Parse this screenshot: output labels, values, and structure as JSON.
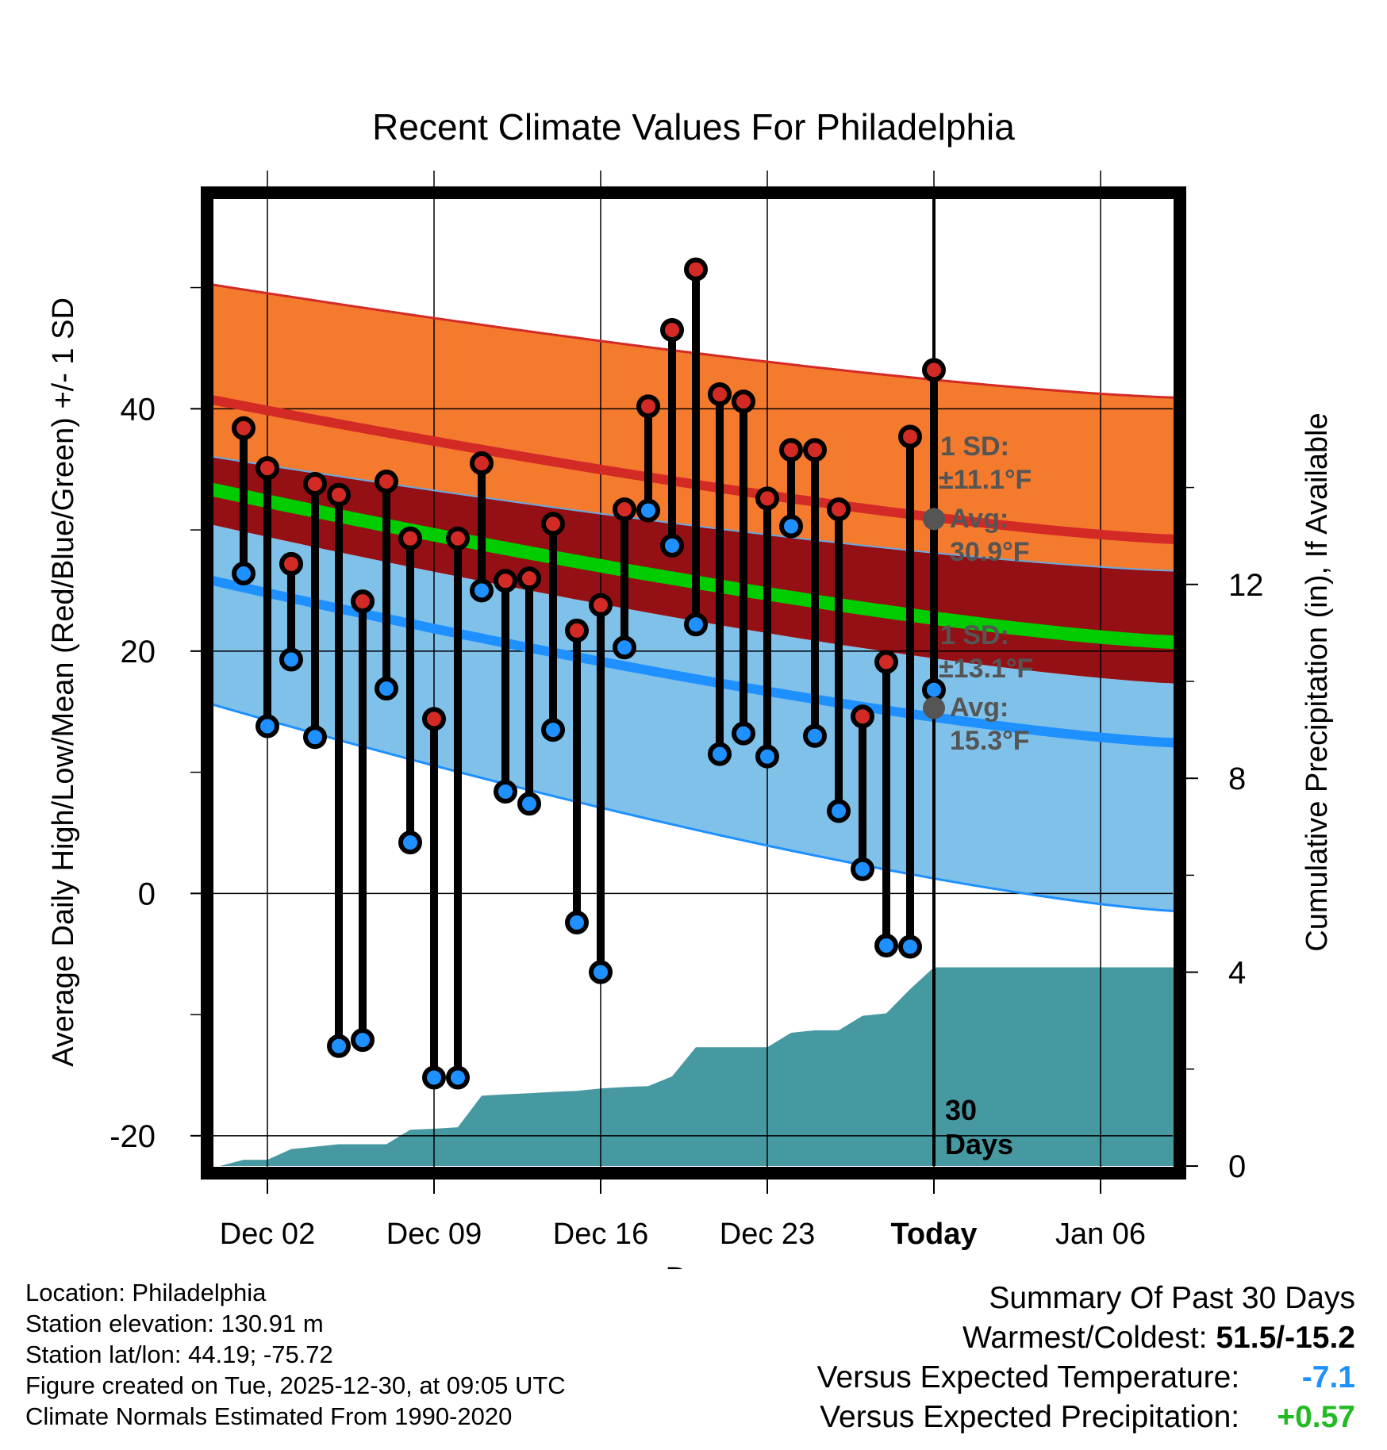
{
  "chart_data": {
    "type": "climate-range",
    "title": "Recent Climate Values For Philadelphia",
    "xlabel": "Day",
    "ylabel": "Average Daily High/Low/Mean (Red/Blue/Green) +/- 1 SD",
    "y2label": "Cumulative Precipitation (in), If Available",
    "x_ticks": [
      "Dec 02",
      "Dec 09",
      "Dec 16",
      "Dec 23",
      "Today",
      "Jan 06"
    ],
    "y_ticks": [
      "40",
      "20",
      "0",
      "-20"
    ],
    "y2_ticks": [
      "12",
      "8",
      "4",
      "0"
    ],
    "ylim": [
      -22.5,
      57.5
    ],
    "y2lim": [
      0,
      20
    ],
    "xlim": [
      -0.5,
      40.5
    ],
    "today_index": 30,
    "days": [
      1,
      2,
      3,
      4,
      5,
      6,
      7,
      8,
      9,
      10,
      11,
      12,
      13,
      14,
      15,
      16,
      17,
      18,
      19,
      20,
      21,
      22,
      23,
      24,
      25,
      26,
      27,
      28,
      29,
      30
    ],
    "highs": [
      38.4,
      35.1,
      27.2,
      33.8,
      32.9,
      24.1,
      34.0,
      29.3,
      14.4,
      29.3,
      35.5,
      25.8,
      26.0,
      30.5,
      21.7,
      23.8,
      31.7,
      40.2,
      46.5,
      51.5,
      41.2,
      40.6,
      32.6,
      36.6,
      36.6,
      31.7,
      14.6,
      19.1,
      37.7,
      43.2
    ],
    "lows": [
      26.4,
      13.8,
      19.3,
      12.9,
      -12.6,
      -12.1,
      16.9,
      4.2,
      -15.2,
      -15.2,
      25.0,
      8.4,
      7.4,
      13.5,
      -2.4,
      -6.5,
      20.3,
      31.6,
      28.7,
      22.2,
      11.5,
      13.2,
      11.3,
      30.3,
      13.0,
      6.8,
      2.0,
      -4.3,
      -4.4,
      16.8
    ],
    "normals_high_mean": [
      40.8,
      29.2
    ],
    "normals_high_upper": [
      50.3,
      40.9
    ],
    "normals_high_lower": [
      36.1,
      26.6
    ],
    "normals_low_mean": [
      25.9,
      12.4
    ],
    "normals_low_upper": [
      30.5,
      17.3
    ],
    "normals_low_lower": [
      15.7,
      -1.5
    ],
    "normals_mean": [
      33.4,
      20.7
    ],
    "precip_x": [
      0,
      1,
      2,
      3,
      4,
      5,
      6,
      7,
      8,
      9,
      10,
      11,
      12,
      13,
      14,
      15,
      16,
      17,
      18,
      19,
      20,
      21,
      22,
      23,
      24,
      25,
      26,
      27,
      28,
      29,
      30,
      40
    ],
    "precip_cum": [
      0.0,
      0.13,
      0.13,
      0.35,
      0.4,
      0.45,
      0.45,
      0.45,
      0.75,
      0.77,
      0.8,
      1.45,
      1.48,
      1.5,
      1.53,
      1.55,
      1.6,
      1.63,
      1.65,
      1.85,
      2.45,
      2.45,
      2.45,
      2.45,
      2.75,
      2.8,
      2.8,
      3.1,
      3.15,
      3.65,
      4.1,
      4.1
    ],
    "annotations": {
      "high_sd_label": "1 SD:",
      "high_sd_value": "±11.1°F",
      "high_avg_label": "Avg:",
      "high_avg_value": "30.9°F",
      "low_sd_label": "1 SD:",
      "low_sd_value": "±13.1°F",
      "low_avg_label": "Avg:",
      "low_avg_value": "15.3°F",
      "high_avg_point": 30.9,
      "low_avg_point": 15.3,
      "days_number": "30",
      "days_label": "Days"
    },
    "colors": {
      "high_band": "#f47a2e",
      "high_line": "#d42a26",
      "overlap_band": "#941014",
      "low_band": "#7fc1e9",
      "low_line": "#1e90ff",
      "mean_line": "#00cc00",
      "precip": "#4799a1",
      "high_marker": "#d42a26",
      "low_marker": "#1e90ff",
      "annotation": "#555555"
    }
  },
  "footer": {
    "location": "Location: Philadelphia",
    "elevation": "Station elevation: 130.91 m",
    "latlon": "Station lat/lon: 44.19; -75.72",
    "created": "Figure created on Tue, 2025-12-30, at 09:05 UTC",
    "normals": "Climate Normals Estimated From 1990-2020"
  },
  "summary": {
    "title": "Summary Of Past 30 Days",
    "warmest_label": "Warmest/Coldest:",
    "warmest_value": "51.5/-15.2",
    "temp_label": "Versus Expected Temperature:",
    "temp_value": "-7.1",
    "precip_label": "Versus Expected Precipitation:",
    "precip_value": "+0.57"
  }
}
